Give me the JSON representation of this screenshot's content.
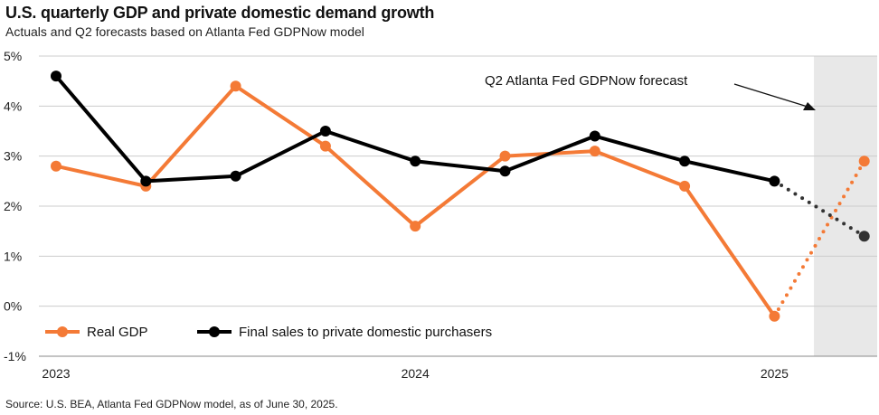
{
  "chart_data": {
    "type": "line",
    "title": "U.S. quarterly GDP and private domestic demand growth",
    "subtitle": "Actuals and Q2 forecasts based on Atlanta Fed GDPNow model",
    "source": "Source: U.S. BEA, Atlanta Fed GDPNow model, as of June 30, 2025.",
    "x": [
      "2023 Q1",
      "2023 Q2",
      "2023 Q3",
      "2023 Q4",
      "2024 Q1",
      "2024 Q2",
      "2024 Q3",
      "2024 Q4",
      "2025 Q1",
      "2025 Q2"
    ],
    "x_tick_labels": [
      {
        "label": "2023",
        "index": 0
      },
      {
        "label": "2024",
        "index": 4
      },
      {
        "label": "2025",
        "index": 8
      }
    ],
    "y_tick_labels": [
      "5%",
      "4%",
      "3%",
      "2%",
      "1%",
      "0%",
      "-1%"
    ],
    "y_ticks": [
      5,
      4,
      3,
      2,
      1,
      0,
      -1
    ],
    "ylim": [
      -1,
      5
    ],
    "grid": "horizontal",
    "legend_position": "bottom-left",
    "forecast_region_start_index": 9,
    "series": [
      {
        "name": "Real GDP",
        "color": "#f47a36",
        "values": [
          2.8,
          2.4,
          4.4,
          3.2,
          1.6,
          3.0,
          3.1,
          2.4,
          -0.2,
          2.9
        ],
        "forecast_from_index": 8
      },
      {
        "name": "Final sales to private domestic purchasers",
        "color": "#000000",
        "forecast_color": "#333333",
        "values": [
          4.6,
          2.5,
          2.6,
          3.5,
          2.9,
          2.7,
          3.4,
          2.9,
          2.5,
          1.4
        ],
        "forecast_from_index": 8
      }
    ],
    "annotations": [
      {
        "text": "Q2 Atlanta Fed GDPNow forecast"
      }
    ],
    "colors": {
      "forecast_shade": "#e8e8e8",
      "grid": "#cccccc"
    }
  }
}
